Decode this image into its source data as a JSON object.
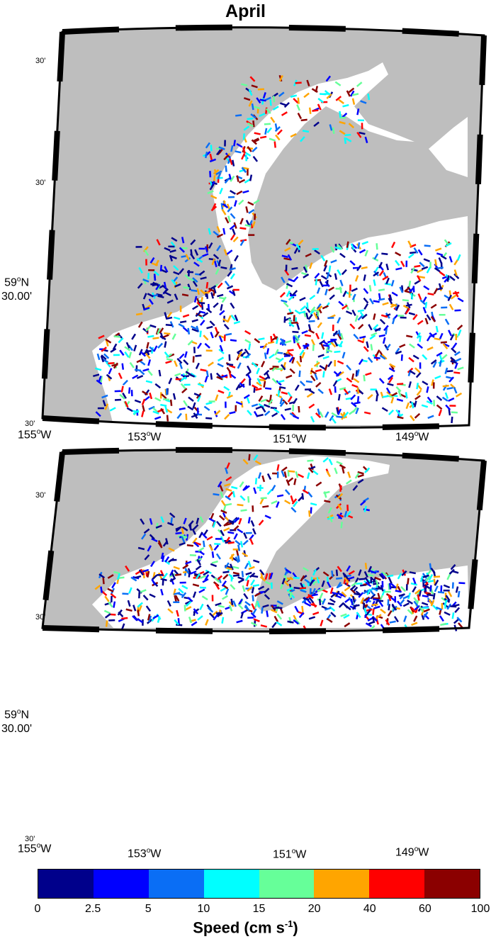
{
  "title": "April",
  "panels": [
    {
      "lat_minor_labels": [
        "30'",
        "30'",
        "30'"
      ],
      "lat_major_deg": "59",
      "lat_major_suffix": "N",
      "lat_major_min": "30.00'",
      "lon_labels": [
        {
          "deg": "155",
          "suffix": "W"
        },
        {
          "deg": "153",
          "suffix": "W"
        },
        {
          "deg": "151",
          "suffix": "W"
        },
        {
          "deg": "149",
          "suffix": "W"
        }
      ]
    },
    {
      "lat_minor_labels": [
        "30'",
        "30'",
        "30'"
      ],
      "lat_major_deg": "59",
      "lat_major_suffix": "N",
      "lat_major_min": "30.00'",
      "lon_labels": [
        {
          "deg": "155",
          "suffix": "W"
        },
        {
          "deg": "153",
          "suffix": "W"
        },
        {
          "deg": "151",
          "suffix": "W"
        },
        {
          "deg": "149",
          "suffix": "W"
        }
      ]
    }
  ],
  "colorbar": {
    "title_main": "Speed (cm s",
    "title_exp": "-1",
    "title_close": ")",
    "ticks": [
      "0",
      "2.5",
      "5",
      "10",
      "15",
      "20",
      "40",
      "60",
      "100"
    ],
    "colors": [
      "#00008b",
      "#0000ff",
      "#0a6ef5",
      "#00ffff",
      "#66ff99",
      "#ffa500",
      "#ff0000",
      "#8b0000"
    ]
  },
  "map_colors": {
    "land": "#bebebe",
    "water": "#ffffff"
  }
}
